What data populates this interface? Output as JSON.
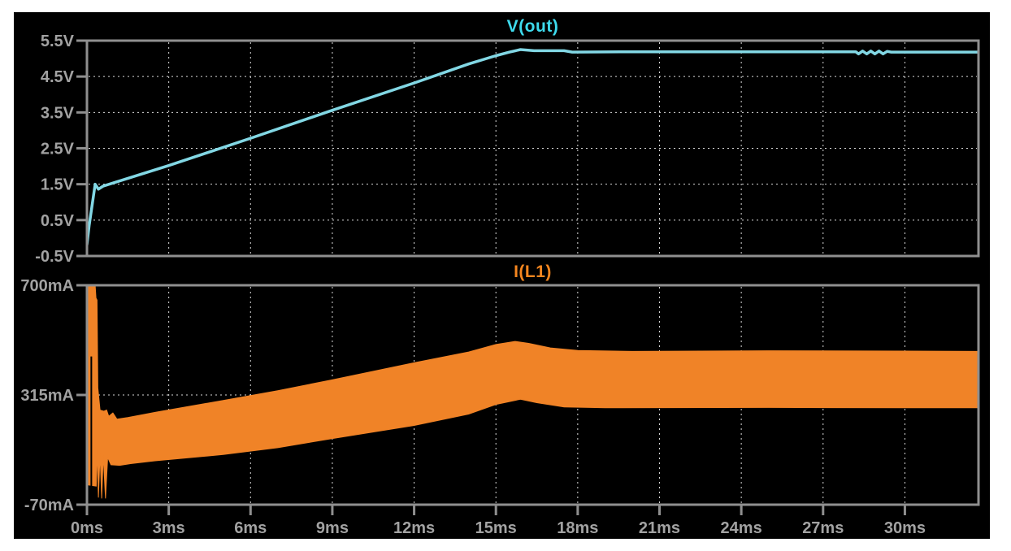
{
  "window": {
    "background": "#ffffff",
    "canvas_background": "#000000",
    "border_color": "#8f8f8f",
    "grid_color": "#d9d9d9",
    "label_color": "#a2a2a2"
  },
  "x_axis": {
    "unit": "ms",
    "ticks": [
      {
        "value": 0,
        "label": "0ms"
      },
      {
        "value": 3,
        "label": "3ms"
      },
      {
        "value": 6,
        "label": "6ms"
      },
      {
        "value": 9,
        "label": "9ms"
      },
      {
        "value": 12,
        "label": "12ms"
      },
      {
        "value": 15,
        "label": "15ms"
      },
      {
        "value": 18,
        "label": "18ms"
      },
      {
        "value": 21,
        "label": "21ms"
      },
      {
        "value": 24,
        "label": "24ms"
      },
      {
        "value": 27,
        "label": "27ms"
      },
      {
        "value": 30,
        "label": "30ms"
      }
    ],
    "xlim_ms": [
      0,
      32.7
    ]
  },
  "chart_data": [
    {
      "type": "line",
      "title": "V(out)",
      "title_color": "#3edbee",
      "unit": "V",
      "ylim": [
        -0.5,
        5.5
      ],
      "y_ticks": [
        {
          "value": 5.5,
          "label": "5.5V"
        },
        {
          "value": 4.5,
          "label": "4.5V"
        },
        {
          "value": 3.5,
          "label": "3.5V"
        },
        {
          "value": 2.5,
          "label": "2.5V"
        },
        {
          "value": 1.5,
          "label": "1.5V"
        },
        {
          "value": 0.5,
          "label": "0.5V"
        },
        {
          "value": -0.5,
          "label": "-0.5V"
        }
      ],
      "grid_y": [
        4.5,
        3.5,
        2.5,
        1.5,
        0.5
      ],
      "series": [
        {
          "name": "V(out)",
          "color": "#82d7e4",
          "points_ms_v": [
            [
              0,
              -0.18
            ],
            [
              0.08,
              0.35
            ],
            [
              0.3,
              1.5
            ],
            [
              0.42,
              1.36
            ],
            [
              0.6,
              1.45
            ],
            [
              3,
              2.02
            ],
            [
              6,
              2.78
            ],
            [
              9,
              3.56
            ],
            [
              12,
              4.32
            ],
            [
              14,
              4.85
            ],
            [
              15,
              5.08
            ],
            [
              15.5,
              5.18
            ],
            [
              15.9,
              5.25
            ],
            [
              16.4,
              5.22
            ],
            [
              17.5,
              5.22
            ],
            [
              17.8,
              5.18
            ],
            [
              20,
              5.19
            ],
            [
              28.2,
              5.19
            ],
            [
              28.3,
              5.13
            ],
            [
              28.45,
              5.21
            ],
            [
              28.6,
              5.13
            ],
            [
              28.75,
              5.21
            ],
            [
              28.9,
              5.13
            ],
            [
              29.05,
              5.21
            ],
            [
              29.2,
              5.13
            ],
            [
              29.35,
              5.2
            ],
            [
              29.5,
              5.18
            ],
            [
              32.7,
              5.18
            ]
          ]
        }
      ]
    },
    {
      "type": "area",
      "title": "I(L1)",
      "title_color": "#f5861f",
      "unit": "mA",
      "ylim": [
        -70,
        700
      ],
      "y_ticks": [
        {
          "value": 700,
          "label": "700mA"
        },
        {
          "value": 315,
          "label": "315mA"
        },
        {
          "value": -70,
          "label": "-70mA"
        }
      ],
      "grid_y": [
        315
      ],
      "band": {
        "name": "I(L1)",
        "color": "#f08327",
        "top_ms_ma": [
          [
            0,
            20
          ],
          [
            0.05,
            700
          ],
          [
            0.3,
            700
          ],
          [
            0.33,
            655
          ],
          [
            0.37,
            648
          ],
          [
            0.4,
            340
          ],
          [
            0.48,
            262
          ],
          [
            0.62,
            258
          ],
          [
            0.72,
            262
          ],
          [
            0.8,
            240
          ],
          [
            0.95,
            252
          ],
          [
            1.1,
            230
          ],
          [
            1.5,
            236
          ],
          [
            2.5,
            254
          ],
          [
            5,
            296
          ],
          [
            7,
            330
          ],
          [
            9,
            368
          ],
          [
            12,
            428
          ],
          [
            14,
            466
          ],
          [
            15,
            492
          ],
          [
            15.7,
            503
          ],
          [
            16.2,
            496
          ],
          [
            17,
            480
          ],
          [
            18,
            471
          ],
          [
            20,
            468
          ],
          [
            25,
            470
          ],
          [
            30,
            469
          ],
          [
            32.7,
            468
          ]
        ],
        "bottom_ms_ma": [
          [
            0,
            0
          ],
          [
            0.34,
            -5
          ],
          [
            0.38,
            120
          ],
          [
            0.42,
            -45
          ],
          [
            0.48,
            108
          ],
          [
            0.54,
            -48
          ],
          [
            0.6,
            102
          ],
          [
            0.68,
            -48
          ],
          [
            0.76,
            96
          ],
          [
            0.88,
            70
          ],
          [
            1.2,
            68
          ],
          [
            1.6,
            74
          ],
          [
            2.5,
            84
          ],
          [
            5,
            106
          ],
          [
            7,
            130
          ],
          [
            9,
            162
          ],
          [
            12,
            208
          ],
          [
            14,
            248
          ],
          [
            15,
            282
          ],
          [
            15.9,
            300
          ],
          [
            16.5,
            288
          ],
          [
            17.5,
            273
          ],
          [
            19,
            270
          ],
          [
            25,
            271
          ],
          [
            30,
            270
          ],
          [
            32.7,
            270
          ]
        ]
      },
      "spike_marker": {
        "t_ms": 0.16,
        "from_ma": 450,
        "to_ma": -26,
        "color": "#000000"
      }
    }
  ]
}
